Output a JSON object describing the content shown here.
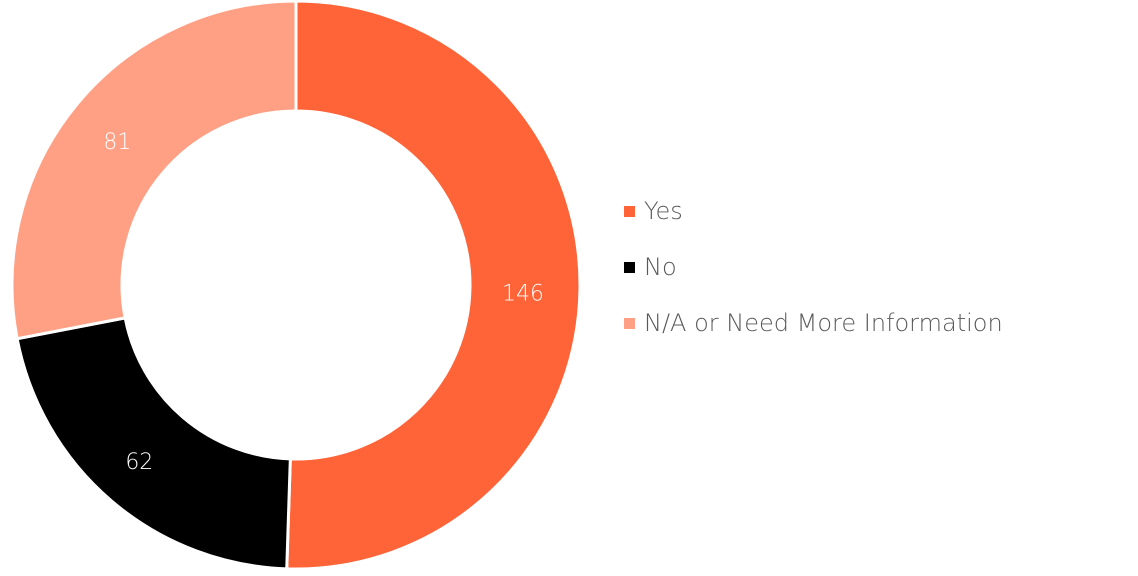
{
  "chart_data": {
    "type": "pie",
    "donut": true,
    "categories": [
      "Yes",
      "No",
      "N/A or Need More Information"
    ],
    "values": [
      146,
      62,
      81
    ],
    "colors": [
      "#FF6338",
      "#000000",
      "#FFA084"
    ],
    "data_labels": [
      "146",
      "62",
      "81"
    ],
    "legend": {
      "placement": "right",
      "entries": [
        "Yes",
        "No",
        "N/A or Need More Information"
      ]
    }
  }
}
